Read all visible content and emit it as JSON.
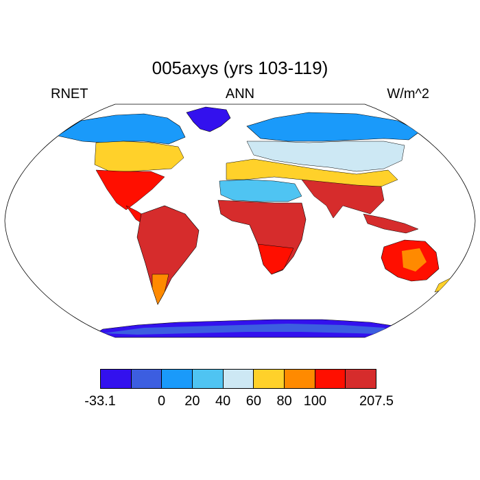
{
  "title": "005axys (yrs 103-119)",
  "subtitle_left": "RNET",
  "subtitle_center": "ANN",
  "subtitle_right": "W/m^2",
  "colorbar": {
    "colors": [
      "#3311ee",
      "#3c5ee0",
      "#1a9afa",
      "#4fc4f2",
      "#cde8f4",
      "#ffd12a",
      "#ff8a00",
      "#ff0f00",
      "#d62c2c"
    ],
    "labels": [
      "-33.1",
      "0",
      "20",
      "40",
      "60",
      "80",
      "100",
      "207.5"
    ],
    "label_edges": [
      0,
      2,
      3,
      4,
      5,
      6,
      7,
      9
    ]
  },
  "legend_symbols": {
    "map": "world-map-robinson"
  }
}
